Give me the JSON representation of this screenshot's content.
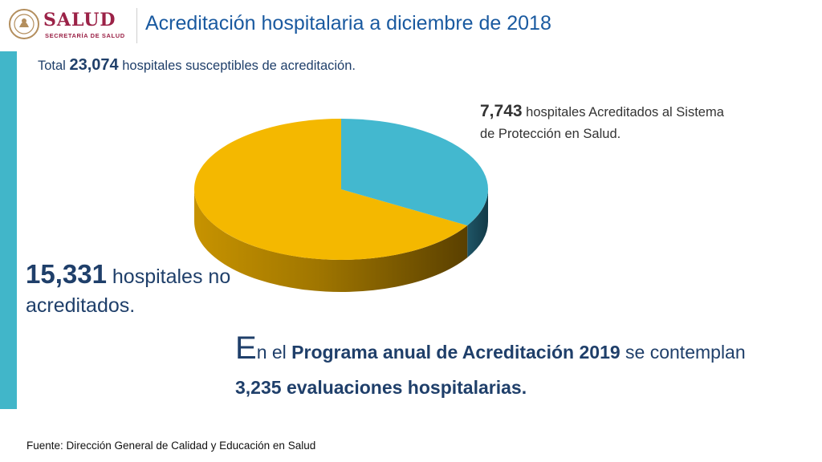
{
  "logo": {
    "name": "SALUD",
    "subtitle": "SECRETARÍA DE SALUD"
  },
  "header": {
    "title": "Acreditación hospitalaria a diciembre de 2018"
  },
  "summary": {
    "prefix": "Total",
    "total": "23,074",
    "suffix": "hospitales susceptibles de acreditación."
  },
  "labels": {
    "accredited_value": "7,743",
    "accredited_text": "hospitales Acreditados al Sistema de Protección en Salud.",
    "not_accredited_value": "15,331",
    "not_accredited_text": "hospitales no acreditados."
  },
  "note": {
    "dropcap": "E",
    "part1": "n el",
    "program": "Programa anual de Acreditación 2019",
    "part2": "se contemplan",
    "evaluations": "3,235 evaluaciones hospitalarias."
  },
  "footer": {
    "source": "Fuente:  Dirección General de Calidad y Educación en Salud"
  },
  "colors": {
    "accredited": "#43b8cf",
    "not_accredited": "#f4b800",
    "accent_bar": "#41b6c9",
    "title": "#1a5aa0",
    "brand": "#9b2247"
  },
  "chart_data": {
    "type": "pie",
    "title": "Acreditación hospitalaria a diciembre de 2018",
    "total": 23074,
    "slices": [
      {
        "name": "hospitales Acreditados al Sistema de Protección en Salud",
        "value": 7743,
        "color": "#43b8cf"
      },
      {
        "name": "hospitales no acreditados",
        "value": 15331,
        "color": "#f4b800"
      }
    ],
    "style": "3d",
    "legend": "none"
  }
}
